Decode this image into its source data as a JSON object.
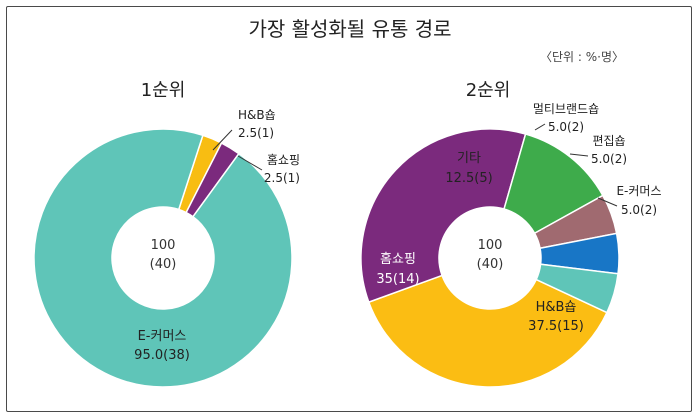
{
  "title": "가장 활성화될 유통 경로",
  "unit_note": "〈단위 : %·명〉",
  "chart_data": [
    {
      "type": "pie",
      "subtitle": "1순위",
      "center": {
        "value": "100",
        "count": "(40)"
      },
      "slices": [
        {
          "label": "E-커머스",
          "value": 95.0,
          "count": 38,
          "value_text": "95.0(38)",
          "color": "#5fc5b8"
        },
        {
          "label": "H&B숍",
          "value": 2.5,
          "count": 1,
          "value_text": "2.5(1)",
          "color": "#f8bd12"
        },
        {
          "label": "홈쇼핑",
          "value": 2.5,
          "count": 1,
          "value_text": "2.5(1)",
          "color": "#7b2a7d"
        }
      ]
    },
    {
      "type": "pie",
      "subtitle": "2순위",
      "center": {
        "value": "100",
        "count": "(40)"
      },
      "slices": [
        {
          "label": "H&B숍",
          "value": 37.5,
          "count": 15,
          "value_text": "37.5(15)",
          "color": "#fbbd13"
        },
        {
          "label": "홈쇼핑",
          "value": 35,
          "count": 14,
          "value_text": "35(14)",
          "color": "#7b2a7d"
        },
        {
          "label": "기타",
          "value": 12.5,
          "count": 5,
          "value_text": "12.5(5)",
          "color": "#3eab4b"
        },
        {
          "label": "멀티브랜드숍",
          "value": 5.0,
          "count": 2,
          "value_text": "5.0(2)",
          "color": "#a06a70"
        },
        {
          "label": "편집숍",
          "value": 5.0,
          "count": 2,
          "value_text": "5.0(2)",
          "color": "#1876c6"
        },
        {
          "label": "E-커머스",
          "value": 5.0,
          "count": 2,
          "value_text": "5.0(2)",
          "color": "#5fc5b8"
        }
      ]
    }
  ]
}
